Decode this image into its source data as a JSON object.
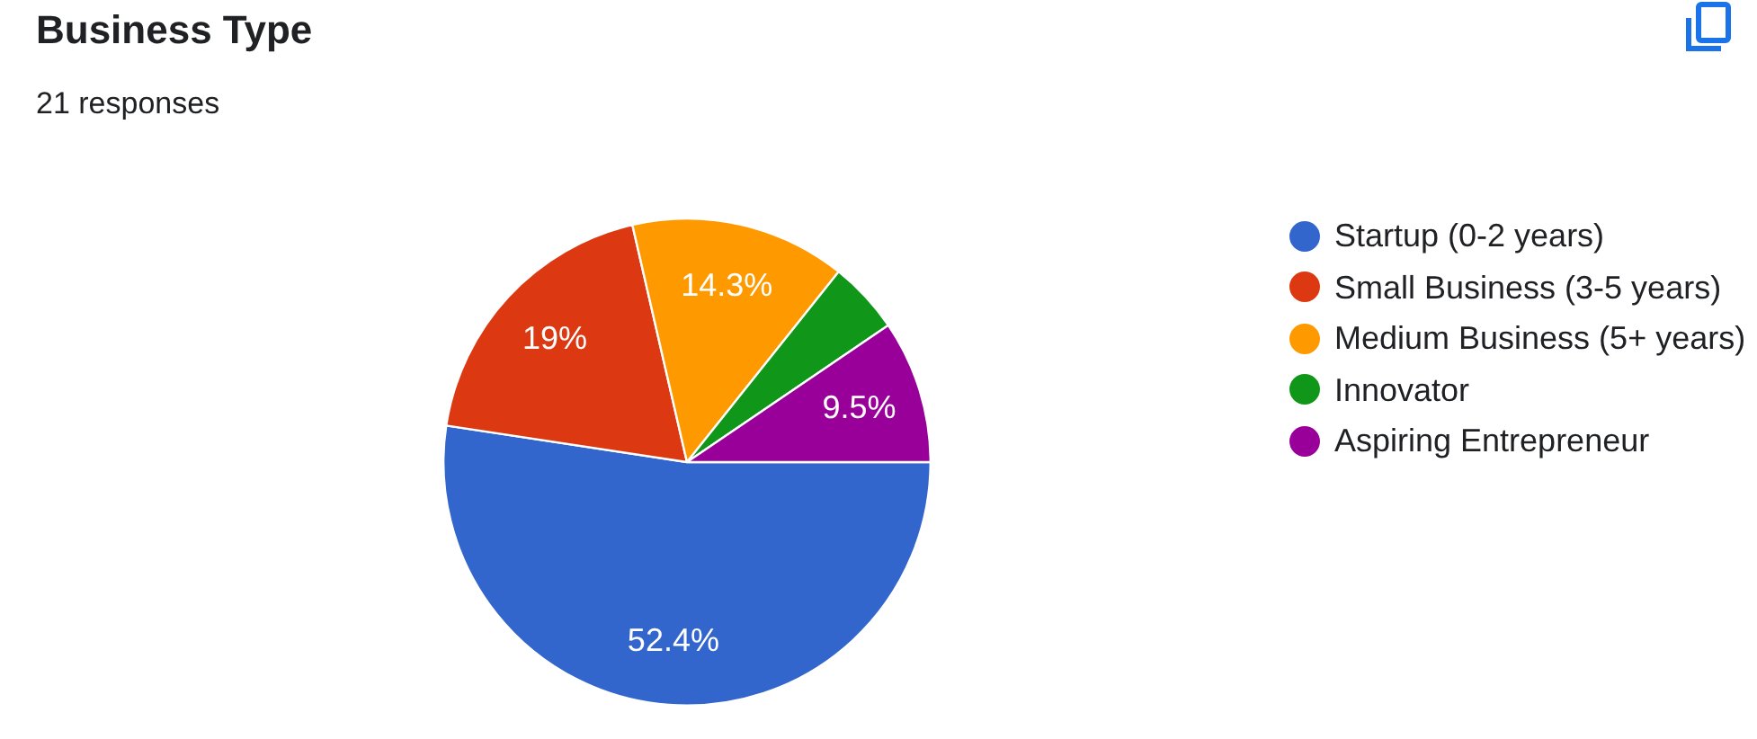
{
  "chart_data": {
    "type": "pie",
    "title": "Business Type",
    "subtitle": "21 responses",
    "categories": [
      "Startup (0-2 years)",
      "Small Business (3-5 years)",
      "Medium Business (5+ years)",
      "Innovator",
      "Aspiring Entrepreneur"
    ],
    "values": [
      52.4,
      19,
      14.3,
      4.8,
      9.5
    ],
    "colors": [
      "#3366cc",
      "#dc3912",
      "#ff9900",
      "#109618",
      "#990099"
    ],
    "value_labels": [
      "52.4%",
      "19%",
      "14.3%",
      null,
      "9.5%"
    ],
    "legend": "right"
  }
}
